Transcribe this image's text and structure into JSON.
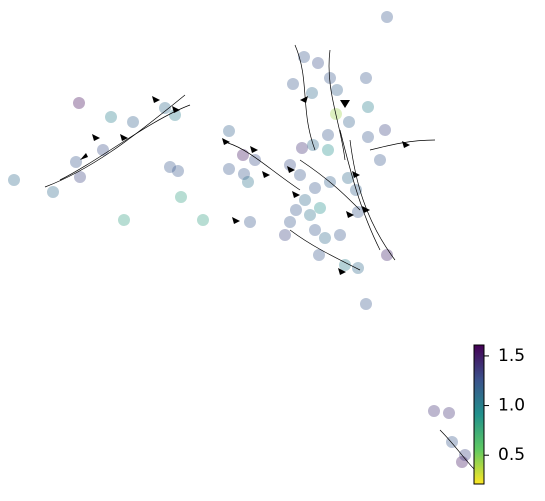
{
  "chart_data": {
    "type": "scatter",
    "colormap": "viridis",
    "opacity": 0.35,
    "xlim": [
      0,
      545
    ],
    "ylim": [
      0,
      501
    ],
    "x": [
      387,
      79,
      111,
      133,
      175,
      165,
      229,
      76,
      80,
      103,
      14,
      53,
      170,
      178,
      181,
      124,
      203,
      250,
      229,
      243,
      255,
      244,
      248,
      304,
      318,
      330,
      293,
      312,
      337,
      366,
      368,
      336,
      349,
      328,
      313,
      302,
      328,
      368,
      385,
      380,
      290,
      300,
      315,
      330,
      305,
      320,
      310,
      296,
      290,
      285,
      315,
      325,
      340,
      358,
      345,
      358,
      319,
      387,
      366,
      434,
      449,
      452,
      465,
      462,
      348,
      356
    ],
    "y": [
      484,
      398,
      384,
      379,
      386,
      393,
      370,
      339,
      324,
      351,
      321,
      309,
      334,
      330,
      304,
      281,
      281,
      279,
      332,
      346,
      341,
      327,
      319,
      444,
      438,
      423,
      417,
      408,
      411,
      423,
      394,
      387,
      379,
      366,
      356,
      353,
      351,
      364,
      371,
      341,
      336,
      326,
      313,
      319,
      301,
      293,
      286,
      291,
      279,
      266,
      271,
      263,
      266,
      289,
      236,
      233,
      246,
      246,
      197,
      90,
      88,
      59,
      46,
      39,
      323,
      311
    ],
    "c": [
      0.6,
      0.25,
      0.8,
      0.65,
      0.8,
      0.7,
      0.65,
      0.6,
      0.5,
      0.55,
      0.7,
      0.7,
      0.6,
      0.6,
      1.0,
      1.0,
      1.0,
      0.6,
      0.6,
      0.3,
      0.55,
      0.6,
      0.75,
      0.6,
      0.55,
      0.6,
      0.6,
      0.7,
      0.65,
      0.6,
      0.8,
      1.4,
      0.65,
      0.6,
      0.7,
      0.4,
      0.9,
      0.6,
      0.5,
      0.6,
      0.55,
      0.6,
      0.6,
      0.65,
      0.7,
      0.9,
      0.75,
      0.6,
      0.6,
      0.5,
      0.6,
      0.7,
      0.6,
      0.6,
      0.8,
      0.7,
      0.6,
      0.35,
      0.6,
      0.4,
      0.4,
      0.6,
      0.5,
      0.3,
      0.7,
      0.65
    ],
    "clim": [
      0.21,
      1.61
    ],
    "cticks": [
      0.5,
      {
        "value": 1.0,
        "label": "1.0"
      },
      1.5
    ]
  }
}
